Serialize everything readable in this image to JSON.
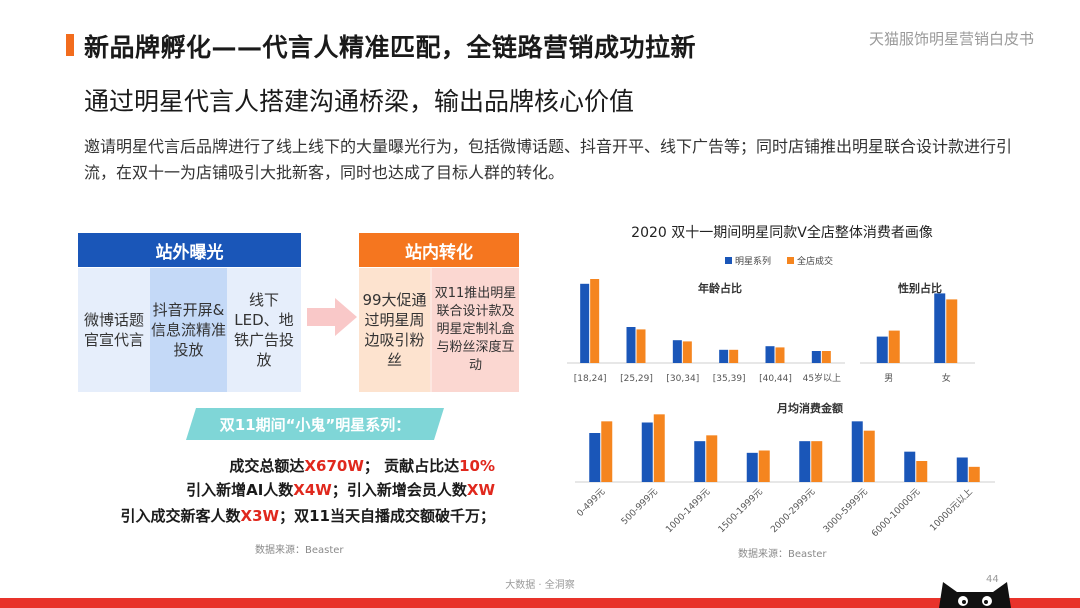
{
  "header": {
    "title": "新品牌孵化——代言人精准匹配，全链路营销成功拉新",
    "brand_note": "天猫服饰明星营销白皮书",
    "subtitle": "通过明星代言人搭建沟通桥梁，输出品牌核心价值",
    "intro": "邀请明星代言后品牌进行了线上线下的大量曝光行为，包括微博话题、抖音开平、线下广告等；同时店铺推出明星联合设计款进行引流，在双十一为店铺吸引大批新客，同时也达成了目标人群的转化。"
  },
  "diagram": {
    "external_label": "站外曝光",
    "internal_label": "站内转化",
    "external_items": [
      "微博话题官宣代言",
      "抖音开屏&信息流精准投放",
      "线下LED、地铁广告投放"
    ],
    "internal_items": [
      "99大促通过明星周边吸引粉丝",
      "双11推出明星联合设计款及明星定制礼盒与粉丝深度互动"
    ]
  },
  "stats": {
    "ribbon": "双11期间“小鬼”明星系列：",
    "line1_a": "成交总额达",
    "line1_b": "X670W",
    "line1_c": "；  贡献占比达",
    "line1_d": "10%",
    "line2_a": "引入新增AI人数",
    "line2_b": "X4W",
    "line2_c": "；引入新增会员人数",
    "line2_d": "XW",
    "line3_a": "引入成交新客人数",
    "line3_b": "X3W",
    "line3_c": "；双11当天自播成交额破千万；"
  },
  "sources": {
    "left": "数据来源：Beaster",
    "right": "数据来源：Beaster"
  },
  "footer": {
    "text": "大数据 · 全洞察",
    "page": "44"
  },
  "colors": {
    "accent_orange": "#f26c1d",
    "blue": "#1a56b8",
    "orange": "#f5851f",
    "footer_red": "#e8322a",
    "ribbon": "#7fd6d7"
  },
  "chart_data": {
    "title": "2020 双十一期间明星同款V全店整体消费者画像",
    "legend": [
      "明星系列",
      "全店成交"
    ],
    "legend_placement": "top",
    "charts": [
      {
        "title": "年龄占比",
        "type": "bar",
        "categories": [
          "[18,24]",
          "[25,29]",
          "[30,34]",
          "[35,39]",
          "[40,44]",
          "45岁以上"
        ],
        "series": [
          {
            "name": "明星系列",
            "values": [
              66,
              30,
              19,
              11,
              14,
              10
            ]
          },
          {
            "name": "全店成交",
            "values": [
              70,
              28,
              18,
              11,
              13,
              10
            ]
          }
        ]
      },
      {
        "title": "性别占比",
        "type": "bar",
        "categories": [
          "男",
          "女"
        ],
        "series": [
          {
            "name": "明星系列",
            "values": [
              22,
              58
            ]
          },
          {
            "name": "全店成交",
            "values": [
              27,
              53
            ]
          }
        ]
      },
      {
        "title": "月均消费金额",
        "type": "bar",
        "categories": [
          "0-499元",
          "500-999元",
          "1000-1499元",
          "1500-1999元",
          "2000-2999元",
          "3000-5999元",
          "6000-10000元",
          "10000元以上"
        ],
        "series": [
          {
            "name": "明星系列",
            "values": [
              42,
              51,
              35,
              25,
              35,
              52,
              26,
              21
            ]
          },
          {
            "name": "全店成交",
            "values": [
              52,
              58,
              40,
              27,
              35,
              44,
              18,
              13
            ]
          }
        ]
      }
    ]
  }
}
